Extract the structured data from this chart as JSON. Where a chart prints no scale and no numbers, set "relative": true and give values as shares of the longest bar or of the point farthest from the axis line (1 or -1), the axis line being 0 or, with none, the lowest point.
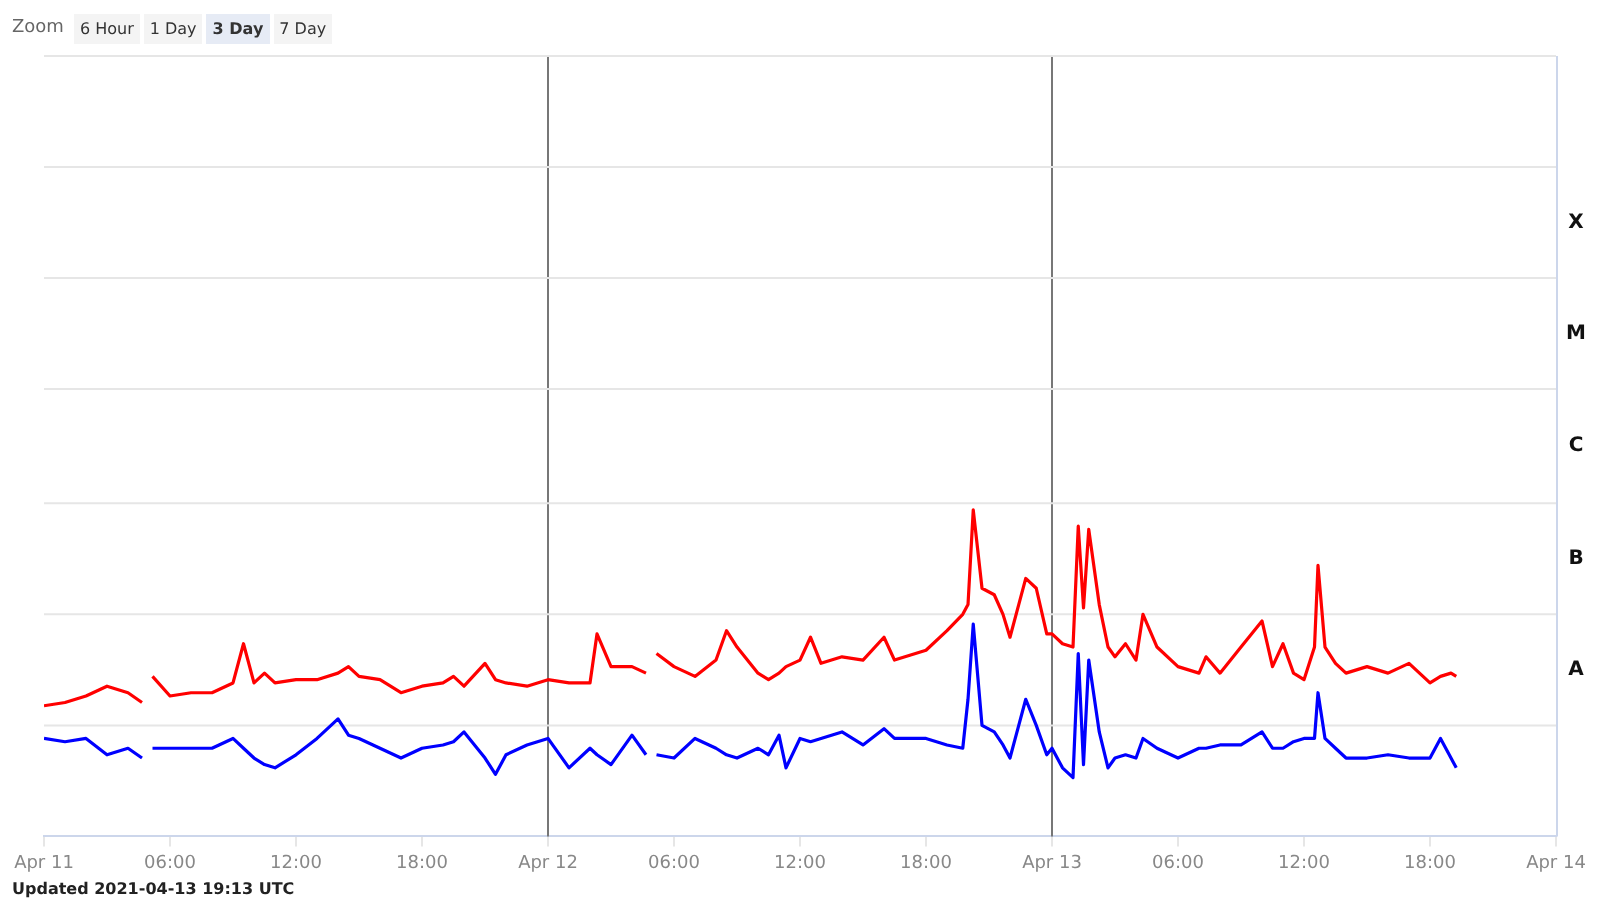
{
  "chart_data": {
    "type": "line",
    "relative": true,
    "legend": false,
    "marker": "none",
    "line_style": "solid",
    "annotations": [
      "Zoom",
      "6 Hour",
      "1 Day",
      "3 Day",
      "7 Day",
      "Updated 2021-04-13 19:13 UTC",
      "A",
      "B",
      "C",
      "M",
      "X"
    ],
    "xlim": [
      "2021-04-11T00:00",
      "2021-04-14T00:00"
    ],
    "xticks": [
      {
        "value": "2021-04-11T00:00",
        "label": "Apr 11"
      },
      {
        "value": "2021-04-11T06:00",
        "label": "06:00"
      },
      {
        "value": "2021-04-11T12:00",
        "label": "12:00"
      },
      {
        "value": "2021-04-11T18:00",
        "label": "18:00"
      },
      {
        "value": "2021-04-12T00:00",
        "label": "Apr 12"
      },
      {
        "value": "2021-04-12T06:00",
        "label": "06:00"
      },
      {
        "value": "2021-04-12T12:00",
        "label": "12:00"
      },
      {
        "value": "2021-04-12T18:00",
        "label": "18:00"
      },
      {
        "value": "2021-04-13T00:00",
        "label": "Apr 13"
      },
      {
        "value": "2021-04-13T06:00",
        "label": "06:00"
      },
      {
        "value": "2021-04-13T12:00",
        "label": "12:00"
      },
      {
        "value": "2021-04-13T18:00",
        "label": "18:00"
      },
      {
        "value": "2021-04-14T00:00",
        "label": "Apr 14"
      }
    ],
    "ref_lines": [
      {
        "axis": "x",
        "value": "2021-04-12T00:00",
        "color": "#777777"
      },
      {
        "axis": "x",
        "value": "2021-04-13T00:00",
        "color": "#777777"
      },
      {
        "axis": "y",
        "value": 0.34,
        "color": "#e6e6e6"
      },
      {
        "axis": "y",
        "value": 0.68,
        "color": "#e6e6e6"
      },
      {
        "axis": "y",
        "value": 1.02,
        "color": "#e6e6e6"
      },
      {
        "axis": "y",
        "value": 1.37,
        "color": "#e6e6e6"
      },
      {
        "axis": "y",
        "value": 1.71,
        "color": "#e6e6e6"
      },
      {
        "axis": "y",
        "value": 2.05,
        "color": "#e6e6e6"
      },
      {
        "axis": "y",
        "value": 2.39,
        "color": "#e6e6e6"
      }
    ],
    "x": [
      "2021-04-11T00:00",
      "2021-04-11T01:00",
      "2021-04-11T02:00",
      "2021-04-11T03:00",
      "2021-04-11T04:00",
      "2021-04-11T04:40",
      "2021-04-11T04:50",
      "2021-04-11T05:10",
      "2021-04-11T06:00",
      "2021-04-11T07:00",
      "2021-04-11T08:00",
      "2021-04-11T09:00",
      "2021-04-11T09:30",
      "2021-04-11T10:00",
      "2021-04-11T10:30",
      "2021-04-11T11:00",
      "2021-04-11T12:00",
      "2021-04-11T13:00",
      "2021-04-11T14:00",
      "2021-04-11T14:30",
      "2021-04-11T15:00",
      "2021-04-11T16:00",
      "2021-04-11T17:00",
      "2021-04-11T18:00",
      "2021-04-11T19:00",
      "2021-04-11T19:30",
      "2021-04-11T20:00",
      "2021-04-11T21:00",
      "2021-04-11T21:30",
      "2021-04-11T22:00",
      "2021-04-11T23:00",
      "2021-04-12T00:00",
      "2021-04-12T01:00",
      "2021-04-12T02:00",
      "2021-04-12T02:20",
      "2021-04-12T03:00",
      "2021-04-12T04:00",
      "2021-04-12T04:40",
      "2021-04-12T04:50",
      "2021-04-12T05:10",
      "2021-04-12T06:00",
      "2021-04-12T07:00",
      "2021-04-12T08:00",
      "2021-04-12T08:30",
      "2021-04-12T09:00",
      "2021-04-12T10:00",
      "2021-04-12T10:30",
      "2021-04-12T11:00",
      "2021-04-12T11:20",
      "2021-04-12T12:00",
      "2021-04-12T12:30",
      "2021-04-12T13:00",
      "2021-04-12T14:00",
      "2021-04-12T15:00",
      "2021-04-12T16:00",
      "2021-04-12T16:30",
      "2021-04-12T17:00",
      "2021-04-12T18:00",
      "2021-04-12T19:00",
      "2021-04-12T19:45",
      "2021-04-12T20:00",
      "2021-04-12T20:15",
      "2021-04-12T20:40",
      "2021-04-12T21:15",
      "2021-04-12T21:40",
      "2021-04-12T22:00",
      "2021-04-12T22:45",
      "2021-04-12T23:15",
      "2021-04-12T23:45",
      "2021-04-13T00:00",
      "2021-04-13T00:30",
      "2021-04-13T01:00",
      "2021-04-13T01:15",
      "2021-04-13T01:30",
      "2021-04-13T01:45",
      "2021-04-13T02:15",
      "2021-04-13T02:40",
      "2021-04-13T03:00",
      "2021-04-13T03:30",
      "2021-04-13T04:00",
      "2021-04-13T04:20",
      "2021-04-13T05:00",
      "2021-04-13T06:00",
      "2021-04-13T07:00",
      "2021-04-13T07:20",
      "2021-04-13T08:00",
      "2021-04-13T09:00",
      "2021-04-13T10:00",
      "2021-04-13T10:30",
      "2021-04-13T11:00",
      "2021-04-13T11:30",
      "2021-04-13T12:00",
      "2021-04-13T12:30",
      "2021-04-13T12:40",
      "2021-04-13T13:00",
      "2021-04-13T13:30",
      "2021-04-13T14:00",
      "2021-04-13T15:00",
      "2021-04-13T16:00",
      "2021-04-13T17:00",
      "2021-04-13T18:00",
      "2021-04-13T18:30",
      "2021-04-13T19:00",
      "2021-04-13T19:15"
    ],
    "series": [
      {
        "color": "#ff0000",
        "values": [
          0.4,
          0.41,
          0.43,
          0.46,
          0.44,
          0.41,
          null,
          0.49,
          0.43,
          0.44,
          0.44,
          0.47,
          0.59,
          0.47,
          0.5,
          0.47,
          0.48,
          0.48,
          0.5,
          0.52,
          0.49,
          0.48,
          0.44,
          0.46,
          0.47,
          0.49,
          0.46,
          0.53,
          0.48,
          0.47,
          0.46,
          0.48,
          0.47,
          0.47,
          0.62,
          0.52,
          0.52,
          0.5,
          null,
          0.56,
          0.52,
          0.49,
          0.54,
          0.63,
          0.58,
          0.5,
          0.48,
          0.5,
          0.52,
          0.54,
          0.61,
          0.53,
          0.55,
          0.54,
          0.61,
          0.54,
          0.55,
          0.57,
          0.63,
          0.68,
          0.71,
          1,
          0.76,
          0.74,
          0.68,
          0.61,
          0.79,
          0.76,
          0.62,
          0.62,
          0.59,
          0.58,
          0.95,
          0.7,
          0.94,
          0.71,
          0.58,
          0.55,
          0.59,
          0.54,
          0.68,
          0.58,
          0.52,
          0.5,
          0.55,
          0.5,
          0.58,
          0.66,
          0.52,
          0.59,
          0.5,
          0.48,
          0.58,
          0.83,
          0.58,
          0.53,
          0.5,
          0.52,
          0.5,
          0.53,
          0.47,
          0.49,
          0.5,
          0.49
        ]
      },
      {
        "color": "#0000ff",
        "values": [
          0.3,
          0.29,
          0.3,
          0.25,
          0.27,
          0.24,
          null,
          0.27,
          0.27,
          0.27,
          0.27,
          0.3,
          0.27,
          0.24,
          0.22,
          0.21,
          0.25,
          0.3,
          0.36,
          0.31,
          0.3,
          0.27,
          0.24,
          0.27,
          0.28,
          0.29,
          0.32,
          0.24,
          0.19,
          0.25,
          0.28,
          0.3,
          0.21,
          0.27,
          0.25,
          0.22,
          0.31,
          0.25,
          null,
          0.25,
          0.24,
          0.3,
          0.27,
          0.25,
          0.24,
          0.27,
          0.25,
          0.31,
          0.21,
          0.3,
          0.29,
          0.3,
          0.32,
          0.28,
          0.33,
          0.3,
          0.3,
          0.3,
          0.28,
          0.27,
          0.42,
          0.65,
          0.34,
          0.32,
          0.28,
          0.24,
          0.42,
          0.34,
          0.25,
          0.27,
          0.21,
          0.18,
          0.56,
          0.22,
          0.54,
          0.32,
          0.21,
          0.24,
          0.25,
          0.24,
          0.3,
          0.27,
          0.24,
          0.27,
          0.27,
          0.28,
          0.28,
          0.32,
          0.27,
          0.27,
          0.29,
          0.3,
          0.3,
          0.44,
          0.3,
          0.27,
          0.24,
          0.24,
          0.25,
          0.24,
          0.24,
          0.3,
          0.24,
          0.21
        ]
      }
    ]
  }
}
